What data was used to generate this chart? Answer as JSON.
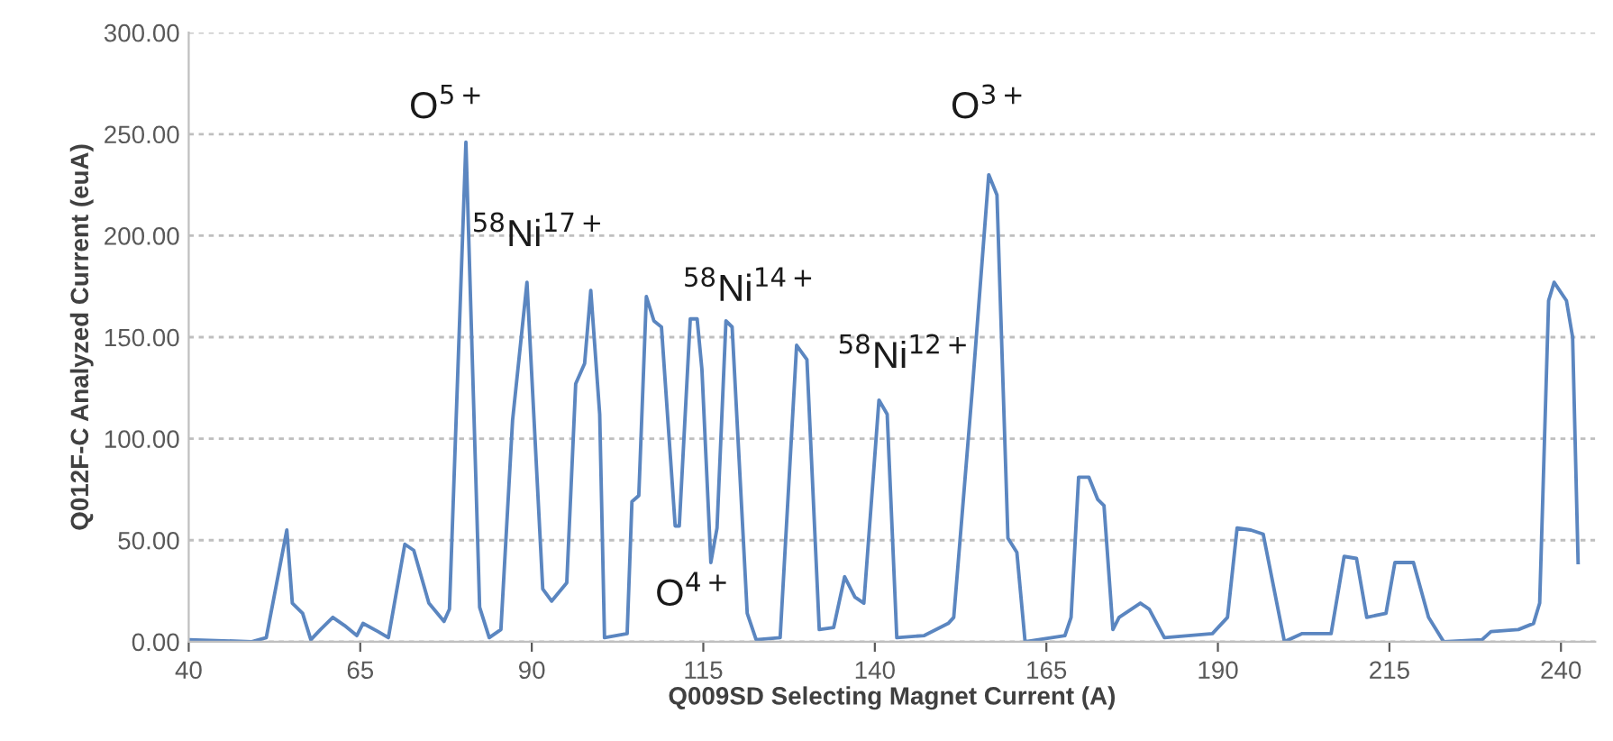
{
  "chart_data": {
    "type": "line",
    "xlabel": "Q009SD Selecting Magnet Current (A)",
    "ylabel": "Q012F-C Analyzed Current (euA)",
    "xlim": [
      40,
      245
    ],
    "xticks": [
      40,
      65,
      90,
      115,
      140,
      165,
      190,
      215,
      240
    ],
    "ylim": [
      0,
      300
    ],
    "yticks": [
      {
        "value": 0,
        "label": "0.00"
      },
      {
        "value": 50,
        "label": "50.00"
      },
      {
        "value": 100,
        "label": "100.00"
      },
      {
        "value": 150,
        "label": "150.00"
      },
      {
        "value": 200,
        "label": "200.00"
      },
      {
        "value": 250,
        "label": "250.00"
      },
      {
        "value": 300,
        "label": "300.00"
      }
    ],
    "grid": "y",
    "legend": false,
    "marker": "none",
    "line_style": "solid",
    "series": [
      {
        "color": "#5b86c0",
        "x": [
          40,
          49.2,
          51.3,
          54.3,
          55.1,
          56.6,
          57.8,
          59.2,
          61,
          62.7,
          64.5,
          65.4,
          67.6,
          69.1,
          71.5,
          72.8,
          75,
          77.2,
          78,
          80.4,
          82.4,
          83.8,
          85.5,
          87.2,
          89.3,
          91.6,
          92.9,
          95.1,
          96.4,
          97.7,
          98.6,
          99.9,
          100.6,
          103.9,
          104.6,
          105.6,
          106.7,
          107.8,
          108.9,
          110.9,
          111.5,
          113.1,
          114.1,
          114.8,
          116.1,
          117,
          118.3,
          119.2,
          121.4,
          122.7,
          126.2,
          128.6,
          130.1,
          131.9,
          134,
          135.6,
          137.1,
          138.4,
          140.6,
          141.8,
          143.2,
          147.2,
          150.7,
          151.5,
          154.2,
          156.6,
          157.8,
          159.4,
          160.7,
          161.9,
          167.7,
          168.6,
          169.7,
          171.2,
          172.5,
          173.4,
          174.7,
          175.6,
          178.7,
          180,
          182.2,
          189.2,
          191.4,
          192.8,
          194.8,
          196.6,
          199.7,
          202.3,
          206.5,
          208.4,
          210.2,
          211.7,
          214.5,
          215.8,
          218.5,
          220.7,
          222.9,
          228.5,
          229.8,
          233.8,
          236,
          236.9,
          238.2,
          239,
          240.8,
          241.7,
          242.5
        ],
        "values": [
          1,
          0,
          2,
          55,
          19,
          14,
          1,
          6,
          12,
          8,
          3,
          9,
          5,
          2,
          48,
          45,
          19,
          10,
          16,
          246,
          17,
          2,
          6,
          109,
          177,
          26,
          20,
          29,
          127,
          137,
          173,
          112,
          2,
          4,
          69,
          72,
          170,
          158,
          155,
          57,
          57,
          159,
          159,
          134,
          39,
          56,
          158,
          155,
          14,
          1,
          2,
          146,
          139,
          6,
          7,
          32,
          22,
          19,
          119,
          112,
          2,
          3,
          9,
          12,
          124,
          230,
          220,
          51,
          44,
          0,
          3,
          12,
          81,
          81,
          70,
          67,
          6,
          12,
          19,
          16,
          2,
          4,
          12,
          56,
          55,
          53,
          0,
          4,
          4,
          42,
          41,
          12,
          14,
          39,
          39,
          12,
          0,
          1,
          5,
          6,
          9,
          19,
          168,
          177,
          168,
          150,
          39
        ]
      }
    ],
    "annotations": [
      "O$^{5+}$",
      "$^{58}$Ni$^{17+}$",
      "$^{58}$Ni$^{14+}$",
      "$^{58}$Ni$^{12+}$",
      "O$^{4+}$",
      "O$^{3+}$"
    ]
  }
}
